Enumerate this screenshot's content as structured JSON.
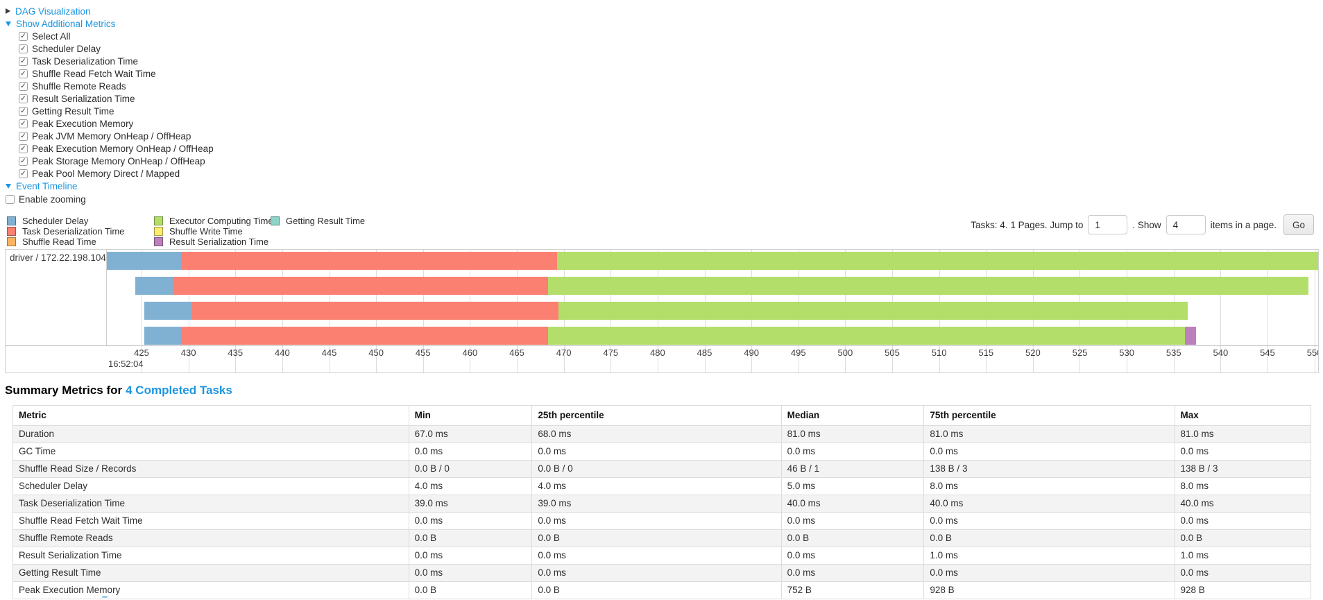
{
  "controls": {
    "dag": {
      "label": "DAG Visualization"
    },
    "additional_metrics": {
      "label": "Show Additional Metrics"
    },
    "checkboxes": [
      {
        "label": "Select All",
        "checked": true
      },
      {
        "label": "Scheduler Delay",
        "checked": true
      },
      {
        "label": "Task Deserialization Time",
        "checked": true
      },
      {
        "label": "Shuffle Read Fetch Wait Time",
        "checked": true
      },
      {
        "label": "Shuffle Remote Reads",
        "checked": true
      },
      {
        "label": "Result Serialization Time",
        "checked": true
      },
      {
        "label": "Getting Result Time",
        "checked": true
      },
      {
        "label": "Peak Execution Memory",
        "checked": true
      },
      {
        "label": "Peak JVM Memory OnHeap / OffHeap",
        "checked": true
      },
      {
        "label": "Peak Execution Memory OnHeap / OffHeap",
        "checked": true
      },
      {
        "label": "Peak Storage Memory OnHeap / OffHeap",
        "checked": true
      },
      {
        "label": "Peak Pool Memory Direct / Mapped",
        "checked": true
      }
    ],
    "event_timeline": {
      "label": "Event Timeline"
    },
    "enable_zooming": {
      "label": "Enable zooming",
      "checked": false
    }
  },
  "pagination": {
    "tasks_text": "Tasks: 4. 1 Pages. Jump to",
    "jump_value": "1",
    "show_text": ". Show",
    "show_value": "4",
    "items_text": "items in a page.",
    "go_label": "Go"
  },
  "legend": {
    "columns": [
      [
        {
          "label": "Scheduler Delay",
          "color": "#80B1D3"
        },
        {
          "label": "Task Deserialization Time",
          "color": "#FB8072"
        },
        {
          "label": "Shuffle Read Time",
          "color": "#FDB462"
        }
      ],
      [
        {
          "label": "Executor Computing Time",
          "color": "#B3DE69"
        },
        {
          "label": "Shuffle Write Time",
          "color": "#FFED6F"
        },
        {
          "label": "Result Serialization Time",
          "color": "#BC80BD"
        }
      ],
      [
        {
          "label": "Getting Result Time",
          "color": "#8DD3C7"
        }
      ]
    ]
  },
  "chart_data": {
    "type": "timeline",
    "row_label": "driver / 172.22.198.104",
    "x_axis": {
      "min": 421.3,
      "max": 550.4,
      "tick_start": 425,
      "tick_end": 550,
      "tick_step": 5,
      "major_label": "16:52:04"
    },
    "series_colors": {
      "scheduler_delay": "#80B1D3",
      "task_deserialization": "#FB8072",
      "shuffle_read": "#FDB462",
      "executor_computing": "#B3DE69",
      "shuffle_write": "#FFED6F",
      "getting_result": "#8DD3C7",
      "result_serialization": "#BC80BD"
    },
    "tasks": [
      {
        "segments": [
          {
            "type": "scheduler_delay",
            "start": 421.3,
            "end": 429.3
          },
          {
            "type": "task_deserialization",
            "start": 429.3,
            "end": 469.3
          },
          {
            "type": "executor_computing",
            "start": 469.3,
            "end": 551.0
          }
        ]
      },
      {
        "segments": [
          {
            "type": "scheduler_delay",
            "start": 424.3,
            "end": 428.3
          },
          {
            "type": "task_deserialization",
            "start": 428.3,
            "end": 468.3
          },
          {
            "type": "executor_computing",
            "start": 468.3,
            "end": 549.4
          }
        ]
      },
      {
        "segments": [
          {
            "type": "scheduler_delay",
            "start": 425.3,
            "end": 430.3
          },
          {
            "type": "task_deserialization",
            "start": 430.3,
            "end": 469.4
          },
          {
            "type": "executor_computing",
            "start": 469.4,
            "end": 536.5
          }
        ]
      },
      {
        "segments": [
          {
            "type": "scheduler_delay",
            "start": 425.3,
            "end": 429.3
          },
          {
            "type": "task_deserialization",
            "start": 429.3,
            "end": 468.3
          },
          {
            "type": "executor_computing",
            "start": 468.3,
            "end": 536.2
          },
          {
            "type": "result_serialization",
            "start": 536.2,
            "end": 537.4
          }
        ]
      }
    ]
  },
  "summary": {
    "title_prefix": "Summary Metrics for",
    "title_link": "4 Completed Tasks",
    "table": {
      "col_widths": [
        "30.5%",
        "9.5%",
        "19.2%",
        "11%",
        "19.3%",
        "10.5%"
      ],
      "headers": [
        "Metric",
        "Min",
        "25th percentile",
        "Median",
        "75th percentile",
        "Max"
      ],
      "rows": [
        [
          "Duration",
          "67.0 ms",
          "68.0 ms",
          "81.0 ms",
          "81.0 ms",
          "81.0 ms"
        ],
        [
          "GC Time",
          "0.0 ms",
          "0.0 ms",
          "0.0 ms",
          "0.0 ms",
          "0.0 ms"
        ],
        [
          "Shuffle Read Size / Records",
          "0.0 B / 0",
          "0.0 B / 0",
          "46 B / 1",
          "138 B / 3",
          "138 B / 3"
        ],
        [
          "Scheduler Delay",
          "4.0 ms",
          "4.0 ms",
          "5.0 ms",
          "8.0 ms",
          "8.0 ms"
        ],
        [
          "Task Deserialization Time",
          "39.0 ms",
          "39.0 ms",
          "40.0 ms",
          "40.0 ms",
          "40.0 ms"
        ],
        [
          "Shuffle Read Fetch Wait Time",
          "0.0 ms",
          "0.0 ms",
          "0.0 ms",
          "0.0 ms",
          "0.0 ms"
        ],
        [
          "Shuffle Remote Reads",
          "0.0 B",
          "0.0 B",
          "0.0 B",
          "0.0 B",
          "0.0 B"
        ],
        [
          "Result Serialization Time",
          "0.0 ms",
          "0.0 ms",
          "0.0 ms",
          "1.0 ms",
          "1.0 ms"
        ],
        [
          "Getting Result Time",
          "0.0 ms",
          "0.0 ms",
          "0.0 ms",
          "0.0 ms",
          "0.0 ms"
        ],
        [
          "Peak Execution Memory",
          "0.0 B",
          "0.0 B",
          "752 B",
          "928 B",
          "928 B"
        ]
      ]
    }
  }
}
